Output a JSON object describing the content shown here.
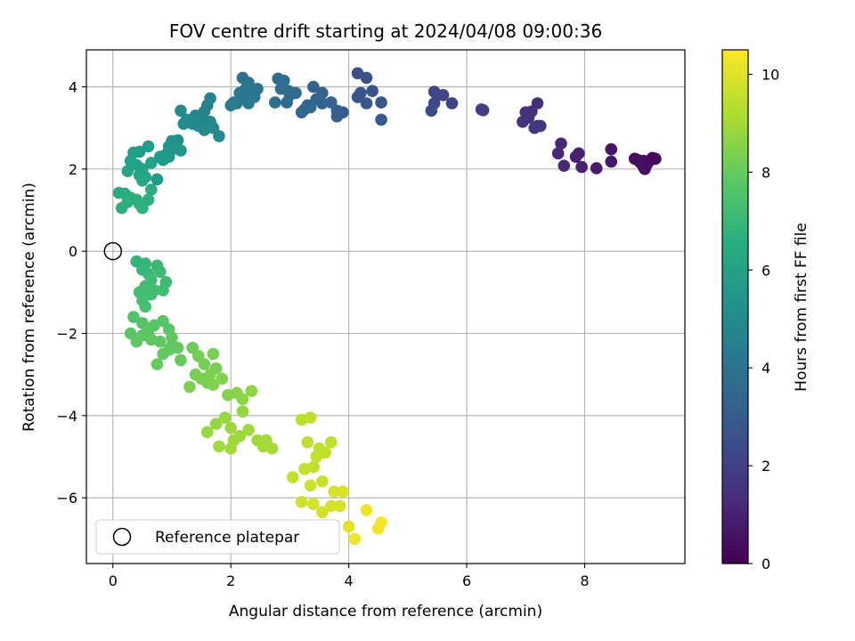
{
  "chart_data": {
    "type": "scatter",
    "title": "FOV centre drift starting at 2024/04/08 09:00:36",
    "xlabel": "Angular distance from reference (arcmin)",
    "ylabel": "Rotation from reference (arcmin)",
    "xlim": [
      -0.45,
      9.7
    ],
    "ylim": [
      -7.6,
      4.9
    ],
    "xticks": [
      0,
      2,
      4,
      6,
      8
    ],
    "yticks": [
      -6,
      -4,
      -2,
      0,
      2,
      4
    ],
    "grid": true,
    "legend": {
      "position": "lower-left",
      "entries": [
        "Reference platepar"
      ]
    },
    "reference_point": {
      "x": 0,
      "y": 0,
      "label": "Reference platepar"
    },
    "colorbar": {
      "label": "Hours from first FF file",
      "range": [
        0,
        10.5
      ],
      "ticks": [
        0,
        2,
        4,
        6,
        8,
        10
      ],
      "colormap": "viridis"
    },
    "points": [
      {
        "x": 9.15,
        "y": 2.27,
        "c": 0.1
      },
      {
        "x": 9.0,
        "y": 2.2,
        "c": 0.2
      },
      {
        "x": 8.9,
        "y": 2.22,
        "c": 0.25
      },
      {
        "x": 8.85,
        "y": 2.25,
        "c": 0.3
      },
      {
        "x": 9.0,
        "y": 2.05,
        "c": 0.35
      },
      {
        "x": 9.05,
        "y": 2.1,
        "c": 0.4
      },
      {
        "x": 8.95,
        "y": 2.15,
        "c": 0.45
      },
      {
        "x": 9.1,
        "y": 2.2,
        "c": 0.2
      },
      {
        "x": 9.02,
        "y": 2.0,
        "c": 0.3
      },
      {
        "x": 9.2,
        "y": 2.25,
        "c": 0.15
      },
      {
        "x": 8.45,
        "y": 2.48,
        "c": 0.6
      },
      {
        "x": 8.45,
        "y": 2.18,
        "c": 0.7
      },
      {
        "x": 8.2,
        "y": 2.02,
        "c": 0.8
      },
      {
        "x": 7.95,
        "y": 2.05,
        "c": 0.9
      },
      {
        "x": 7.85,
        "y": 2.3,
        "c": 0.95
      },
      {
        "x": 7.9,
        "y": 2.38,
        "c": 1.0
      },
      {
        "x": 7.6,
        "y": 2.62,
        "c": 1.1
      },
      {
        "x": 7.55,
        "y": 2.38,
        "c": 1.15
      },
      {
        "x": 7.65,
        "y": 2.08,
        "c": 1.2
      },
      {
        "x": 7.2,
        "y": 3.6,
        "c": 1.4
      },
      {
        "x": 7.1,
        "y": 3.4,
        "c": 1.45
      },
      {
        "x": 7.0,
        "y": 3.38,
        "c": 1.5
      },
      {
        "x": 7.05,
        "y": 3.25,
        "c": 1.55
      },
      {
        "x": 6.95,
        "y": 3.15,
        "c": 1.6
      },
      {
        "x": 7.2,
        "y": 3.05,
        "c": 1.6
      },
      {
        "x": 7.15,
        "y": 3.0,
        "c": 1.65
      },
      {
        "x": 7.25,
        "y": 3.05,
        "c": 1.7
      },
      {
        "x": 6.25,
        "y": 3.45,
        "c": 1.9
      },
      {
        "x": 6.28,
        "y": 3.43,
        "c": 1.95
      },
      {
        "x": 5.75,
        "y": 3.6,
        "c": 2.1
      },
      {
        "x": 5.6,
        "y": 3.8,
        "c": 2.2
      },
      {
        "x": 5.45,
        "y": 3.88,
        "c": 2.25
      },
      {
        "x": 5.5,
        "y": 3.8,
        "c": 2.3
      },
      {
        "x": 5.45,
        "y": 3.6,
        "c": 2.35
      },
      {
        "x": 5.4,
        "y": 3.42,
        "c": 2.4
      },
      {
        "x": 4.15,
        "y": 4.33,
        "c": 2.6
      },
      {
        "x": 4.3,
        "y": 4.22,
        "c": 2.65
      },
      {
        "x": 4.4,
        "y": 3.9,
        "c": 2.7
      },
      {
        "x": 4.2,
        "y": 3.85,
        "c": 2.75
      },
      {
        "x": 4.15,
        "y": 3.75,
        "c": 2.8
      },
      {
        "x": 4.3,
        "y": 3.6,
        "c": 2.85
      },
      {
        "x": 4.55,
        "y": 3.62,
        "c": 2.9
      },
      {
        "x": 4.55,
        "y": 3.2,
        "c": 2.95
      },
      {
        "x": 3.9,
        "y": 3.38,
        "c": 3.1
      },
      {
        "x": 3.8,
        "y": 3.42,
        "c": 3.15
      },
      {
        "x": 3.8,
        "y": 3.28,
        "c": 3.2
      },
      {
        "x": 3.7,
        "y": 3.62,
        "c": 3.25
      },
      {
        "x": 3.55,
        "y": 3.85,
        "c": 3.3
      },
      {
        "x": 3.45,
        "y": 3.7,
        "c": 3.35
      },
      {
        "x": 3.4,
        "y": 4.0,
        "c": 3.35
      },
      {
        "x": 3.3,
        "y": 3.55,
        "c": 3.4
      },
      {
        "x": 3.25,
        "y": 3.45,
        "c": 3.45
      },
      {
        "x": 3.2,
        "y": 3.38,
        "c": 3.5
      },
      {
        "x": 3.35,
        "y": 3.5,
        "c": 3.5
      },
      {
        "x": 3.55,
        "y": 3.6,
        "c": 3.4
      },
      {
        "x": 3.1,
        "y": 3.85,
        "c": 3.55
      },
      {
        "x": 3.0,
        "y": 3.8,
        "c": 3.6
      },
      {
        "x": 2.95,
        "y": 3.62,
        "c": 3.65
      },
      {
        "x": 2.85,
        "y": 3.95,
        "c": 3.7
      },
      {
        "x": 2.8,
        "y": 4.2,
        "c": 3.75
      },
      {
        "x": 2.9,
        "y": 4.15,
        "c": 3.75
      },
      {
        "x": 2.75,
        "y": 3.62,
        "c": 3.8
      },
      {
        "x": 2.98,
        "y": 3.9,
        "c": 3.7
      },
      {
        "x": 2.3,
        "y": 4.1,
        "c": 3.9
      },
      {
        "x": 2.2,
        "y": 4.22,
        "c": 3.95
      },
      {
        "x": 2.45,
        "y": 3.95,
        "c": 4.0
      },
      {
        "x": 2.35,
        "y": 3.85,
        "c": 4.05
      },
      {
        "x": 2.2,
        "y": 3.7,
        "c": 4.1
      },
      {
        "x": 2.1,
        "y": 3.6,
        "c": 4.15
      },
      {
        "x": 2.3,
        "y": 3.6,
        "c": 4.2
      },
      {
        "x": 2.4,
        "y": 3.75,
        "c": 4.25
      },
      {
        "x": 2.15,
        "y": 3.85,
        "c": 4.3
      },
      {
        "x": 2.05,
        "y": 3.62,
        "c": 4.35
      },
      {
        "x": 2.25,
        "y": 3.95,
        "c": 4.2
      },
      {
        "x": 2.0,
        "y": 3.55,
        "c": 4.4
      },
      {
        "x": 1.65,
        "y": 3.72,
        "c": 4.6
      },
      {
        "x": 1.6,
        "y": 3.55,
        "c": 4.65
      },
      {
        "x": 1.55,
        "y": 3.4,
        "c": 4.7
      },
      {
        "x": 1.65,
        "y": 3.15,
        "c": 4.75
      },
      {
        "x": 1.5,
        "y": 3.2,
        "c": 4.8
      },
      {
        "x": 1.4,
        "y": 3.3,
        "c": 4.85
      },
      {
        "x": 1.35,
        "y": 3.1,
        "c": 4.9
      },
      {
        "x": 1.45,
        "y": 3.05,
        "c": 4.95
      },
      {
        "x": 1.55,
        "y": 2.95,
        "c": 5.0
      },
      {
        "x": 1.25,
        "y": 3.2,
        "c": 5.0
      },
      {
        "x": 1.15,
        "y": 3.42,
        "c": 5.05
      },
      {
        "x": 1.2,
        "y": 3.1,
        "c": 5.1
      },
      {
        "x": 1.8,
        "y": 2.8,
        "c": 5.0
      },
      {
        "x": 1.7,
        "y": 3.0,
        "c": 4.9
      },
      {
        "x": 1.1,
        "y": 2.7,
        "c": 5.3
      },
      {
        "x": 1.0,
        "y": 2.68,
        "c": 5.35
      },
      {
        "x": 0.95,
        "y": 2.55,
        "c": 5.4
      },
      {
        "x": 1.05,
        "y": 2.5,
        "c": 5.45
      },
      {
        "x": 1.15,
        "y": 2.45,
        "c": 5.5
      },
      {
        "x": 0.9,
        "y": 2.35,
        "c": 5.55
      },
      {
        "x": 0.85,
        "y": 2.22,
        "c": 5.6
      },
      {
        "x": 0.8,
        "y": 2.3,
        "c": 5.65
      },
      {
        "x": 0.95,
        "y": 2.3,
        "c": 5.6
      },
      {
        "x": 0.75,
        "y": 1.75,
        "c": 5.7
      },
      {
        "x": 0.6,
        "y": 2.55,
        "c": 5.8
      },
      {
        "x": 0.45,
        "y": 2.42,
        "c": 5.85
      },
      {
        "x": 0.35,
        "y": 2.4,
        "c": 5.9
      },
      {
        "x": 0.3,
        "y": 2.2,
        "c": 5.95
      },
      {
        "x": 0.4,
        "y": 2.1,
        "c": 6.0
      },
      {
        "x": 0.5,
        "y": 2.0,
        "c": 6.05
      },
      {
        "x": 0.45,
        "y": 1.85,
        "c": 6.1
      },
      {
        "x": 0.55,
        "y": 1.8,
        "c": 6.1
      },
      {
        "x": 0.25,
        "y": 1.95,
        "c": 6.15
      },
      {
        "x": 0.5,
        "y": 1.72,
        "c": 6.2
      },
      {
        "x": 0.65,
        "y": 2.15,
        "c": 6.0
      },
      {
        "x": 0.1,
        "y": 1.42,
        "c": 6.4
      },
      {
        "x": 0.2,
        "y": 1.4,
        "c": 6.45
      },
      {
        "x": 0.3,
        "y": 1.3,
        "c": 6.5
      },
      {
        "x": 0.4,
        "y": 1.25,
        "c": 6.55
      },
      {
        "x": 0.25,
        "y": 1.2,
        "c": 6.6
      },
      {
        "x": 0.15,
        "y": 1.05,
        "c": 6.65
      },
      {
        "x": 0.5,
        "y": 1.05,
        "c": 6.7
      },
      {
        "x": 0.45,
        "y": 1.15,
        "c": 6.7
      },
      {
        "x": 0.6,
        "y": 1.25,
        "c": 6.6
      },
      {
        "x": 0.65,
        "y": 1.5,
        "c": 6.5
      },
      {
        "x": 0.4,
        "y": -0.25,
        "c": 6.9
      },
      {
        "x": 0.55,
        "y": -0.3,
        "c": 6.95
      },
      {
        "x": 0.5,
        "y": -0.45,
        "c": 7.0
      },
      {
        "x": 0.6,
        "y": -0.55,
        "c": 7.05
      },
      {
        "x": 0.75,
        "y": -0.35,
        "c": 7.1
      },
      {
        "x": 0.8,
        "y": -0.5,
        "c": 7.15
      },
      {
        "x": 0.65,
        "y": -0.7,
        "c": 7.2
      },
      {
        "x": 0.55,
        "y": -0.85,
        "c": 7.25
      },
      {
        "x": 0.45,
        "y": -1.0,
        "c": 7.3
      },
      {
        "x": 0.5,
        "y": -1.2,
        "c": 7.35
      },
      {
        "x": 0.65,
        "y": -1.05,
        "c": 7.3
      },
      {
        "x": 0.9,
        "y": -0.75,
        "c": 7.2
      },
      {
        "x": 0.85,
        "y": -0.95,
        "c": 7.3
      },
      {
        "x": 0.55,
        "y": -1.35,
        "c": 7.4
      },
      {
        "x": 0.7,
        "y": -0.95,
        "c": 7.3
      },
      {
        "x": 0.35,
        "y": -1.6,
        "c": 7.6
      },
      {
        "x": 0.5,
        "y": -1.75,
        "c": 7.65
      },
      {
        "x": 0.7,
        "y": -1.8,
        "c": 7.7
      },
      {
        "x": 0.85,
        "y": -1.7,
        "c": 7.7
      },
      {
        "x": 0.95,
        "y": -1.9,
        "c": 7.75
      },
      {
        "x": 0.3,
        "y": -2.0,
        "c": 7.8
      },
      {
        "x": 0.5,
        "y": -2.05,
        "c": 7.8
      },
      {
        "x": 0.65,
        "y": -2.15,
        "c": 7.85
      },
      {
        "x": 0.8,
        "y": -2.2,
        "c": 7.85
      },
      {
        "x": 1.0,
        "y": -2.1,
        "c": 7.9
      },
      {
        "x": 0.85,
        "y": -2.5,
        "c": 7.95
      },
      {
        "x": 0.75,
        "y": -2.75,
        "c": 8.0
      },
      {
        "x": 1.1,
        "y": -2.35,
        "c": 7.95
      },
      {
        "x": 1.15,
        "y": -2.65,
        "c": 8.0
      },
      {
        "x": 0.95,
        "y": -2.4,
        "c": 7.9
      },
      {
        "x": 0.6,
        "y": -1.95,
        "c": 7.75
      },
      {
        "x": 0.4,
        "y": -2.2,
        "c": 7.85
      },
      {
        "x": 1.0,
        "y": -2.3,
        "c": 7.9
      },
      {
        "x": 1.35,
        "y": -2.35,
        "c": 8.2
      },
      {
        "x": 1.45,
        "y": -2.55,
        "c": 8.25
      },
      {
        "x": 1.55,
        "y": -2.75,
        "c": 8.3
      },
      {
        "x": 1.7,
        "y": -2.5,
        "c": 8.3
      },
      {
        "x": 1.4,
        "y": -3.0,
        "c": 8.35
      },
      {
        "x": 1.5,
        "y": -3.1,
        "c": 8.4
      },
      {
        "x": 1.65,
        "y": -3.0,
        "c": 8.45
      },
      {
        "x": 1.7,
        "y": -3.25,
        "c": 8.5
      },
      {
        "x": 1.85,
        "y": -3.1,
        "c": 8.5
      },
      {
        "x": 1.3,
        "y": -3.3,
        "c": 8.4
      },
      {
        "x": 1.95,
        "y": -3.5,
        "c": 8.55
      },
      {
        "x": 2.1,
        "y": -3.45,
        "c": 8.6
      },
      {
        "x": 2.2,
        "y": -3.6,
        "c": 8.65
      },
      {
        "x": 2.35,
        "y": -3.4,
        "c": 8.7
      },
      {
        "x": 1.75,
        "y": -2.85,
        "c": 8.3
      },
      {
        "x": 1.6,
        "y": -3.2,
        "c": 8.4
      },
      {
        "x": 1.75,
        "y": -4.2,
        "c": 8.8
      },
      {
        "x": 1.9,
        "y": -4.05,
        "c": 8.85
      },
      {
        "x": 2.0,
        "y": -4.3,
        "c": 8.9
      },
      {
        "x": 2.15,
        "y": -4.5,
        "c": 8.95
      },
      {
        "x": 2.3,
        "y": -4.35,
        "c": 9.0
      },
      {
        "x": 2.45,
        "y": -4.6,
        "c": 9.0
      },
      {
        "x": 2.55,
        "y": -4.75,
        "c": 9.05
      },
      {
        "x": 2.7,
        "y": -4.8,
        "c": 9.1
      },
      {
        "x": 2.0,
        "y": -4.8,
        "c": 9.05
      },
      {
        "x": 1.6,
        "y": -4.4,
        "c": 8.85
      },
      {
        "x": 2.2,
        "y": -3.9,
        "c": 8.75
      },
      {
        "x": 2.05,
        "y": -4.6,
        "c": 8.95
      },
      {
        "x": 2.6,
        "y": -4.6,
        "c": 9.05
      },
      {
        "x": 1.8,
        "y": -4.75,
        "c": 9.0
      },
      {
        "x": 3.2,
        "y": -4.1,
        "c": 9.4
      },
      {
        "x": 3.35,
        "y": -4.05,
        "c": 9.45
      },
      {
        "x": 3.5,
        "y": -4.8,
        "c": 9.5
      },
      {
        "x": 3.6,
        "y": -4.9,
        "c": 9.5
      },
      {
        "x": 3.3,
        "y": -4.65,
        "c": 9.5
      },
      {
        "x": 3.4,
        "y": -5.25,
        "c": 9.55
      },
      {
        "x": 3.25,
        "y": -5.3,
        "c": 9.6
      },
      {
        "x": 3.05,
        "y": -5.5,
        "c": 9.6
      },
      {
        "x": 3.55,
        "y": -5.6,
        "c": 9.65
      },
      {
        "x": 3.35,
        "y": -5.7,
        "c": 9.7
      },
      {
        "x": 3.2,
        "y": -6.1,
        "c": 9.75
      },
      {
        "x": 3.4,
        "y": -6.15,
        "c": 9.8
      },
      {
        "x": 3.55,
        "y": -6.35,
        "c": 9.8
      },
      {
        "x": 3.7,
        "y": -6.2,
        "c": 9.85
      },
      {
        "x": 3.75,
        "y": -5.85,
        "c": 9.85
      },
      {
        "x": 3.9,
        "y": -5.85,
        "c": 9.9
      },
      {
        "x": 3.85,
        "y": -6.2,
        "c": 9.9
      },
      {
        "x": 3.7,
        "y": -4.65,
        "c": 9.5
      },
      {
        "x": 3.45,
        "y": -5.0,
        "c": 9.55
      },
      {
        "x": 4.0,
        "y": -6.7,
        "c": 10.1
      },
      {
        "x": 4.3,
        "y": -6.3,
        "c": 10.2
      },
      {
        "x": 4.1,
        "y": -7.0,
        "c": 10.25
      },
      {
        "x": 4.5,
        "y": -6.75,
        "c": 10.3
      },
      {
        "x": 4.55,
        "y": -6.6,
        "c": 10.35
      }
    ]
  }
}
